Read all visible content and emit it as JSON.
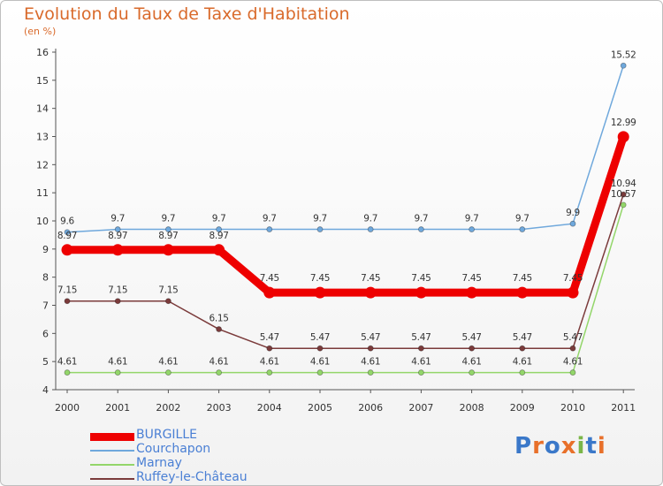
{
  "chart_data": {
    "type": "line",
    "title": "Evolution du Taux de Taxe d'Habitation",
    "subtitle": "(en %)",
    "xlabel": "",
    "ylabel": "",
    "ylim": [
      4,
      16
    ],
    "yticks": [
      "4",
      "5",
      "6",
      "7",
      "8",
      "9",
      "10",
      "11",
      "12",
      "13",
      "14",
      "15",
      "16"
    ],
    "categories": [
      "2000",
      "2001",
      "2002",
      "2003",
      "2004",
      "2005",
      "2006",
      "2007",
      "2008",
      "2009",
      "2010",
      "2011"
    ],
    "series": [
      {
        "name": "BURGILLE",
        "color": "#ee0000",
        "values": [
          8.97,
          8.97,
          8.97,
          8.97,
          7.45,
          7.45,
          7.45,
          7.45,
          7.45,
          7.45,
          7.45,
          12.99
        ],
        "labels": [
          "8.97",
          "8.97",
          "8.97",
          "8.97",
          "7.45",
          "7.45",
          "7.45",
          "7.45",
          "7.45",
          "7.45",
          "7.45",
          "12.99"
        ]
      },
      {
        "name": "Courchapon",
        "color": "#6fa8dc",
        "values": [
          9.6,
          9.7,
          9.7,
          9.7,
          9.7,
          9.7,
          9.7,
          9.7,
          9.7,
          9.7,
          9.9,
          15.52
        ],
        "labels": [
          "9.6",
          "9.7",
          "9.7",
          "9.7",
          "9.7",
          "9.7",
          "9.7",
          "9.7",
          "9.7",
          "9.7",
          "9.9",
          "15.52"
        ]
      },
      {
        "name": "Marnay",
        "color": "#93d66a",
        "values": [
          4.61,
          4.61,
          4.61,
          4.61,
          4.61,
          4.61,
          4.61,
          4.61,
          4.61,
          4.61,
          4.61,
          10.57
        ],
        "labels": [
          "4.61",
          "4.61",
          "4.61",
          "4.61",
          "4.61",
          "4.61",
          "4.61",
          "4.61",
          "4.61",
          "4.61",
          "4.61",
          "10.57"
        ]
      },
      {
        "name": "Ruffey-le-Château",
        "color": "#7b3b3b",
        "values": [
          7.15,
          7.15,
          7.15,
          6.15,
          5.47,
          5.47,
          5.47,
          5.47,
          5.47,
          5.47,
          5.47,
          10.94
        ],
        "labels": [
          "7.15",
          "7.15",
          "7.15",
          "6.15",
          "5.47",
          "5.47",
          "5.47",
          "5.47",
          "5.47",
          "5.47",
          "5.47",
          "10.94"
        ]
      }
    ],
    "legend_position": "bottom-left",
    "grid": false
  },
  "logo": {
    "text": "Proxiti",
    "letters": [
      "P",
      "r",
      "o",
      "x",
      "i",
      "t",
      "i"
    ],
    "colors": [
      "#3a78c9",
      "#e8702a",
      "#3a78c9",
      "#e8702a",
      "#7ab648",
      "#3a78c9",
      "#e8702a"
    ]
  }
}
